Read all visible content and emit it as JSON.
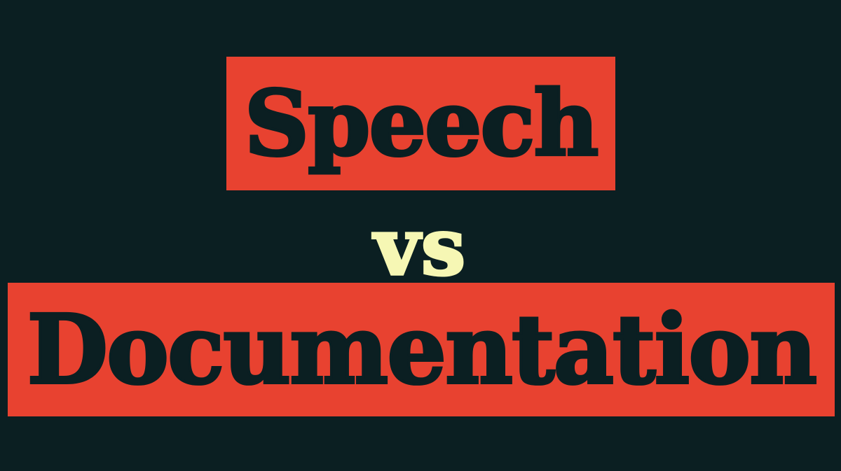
{
  "title_top": "Speech",
  "connector": "vs",
  "title_bottom": "Documentation",
  "colors": {
    "background": "#0b1f22",
    "banner": "#e84230",
    "banner_text": "#0b1f22",
    "connector_text": "#f6f7b4"
  }
}
